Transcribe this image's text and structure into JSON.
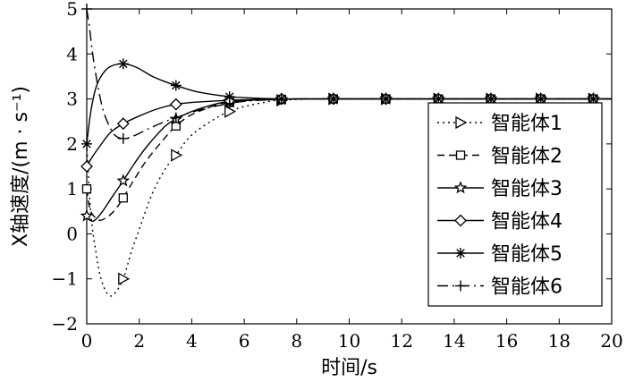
{
  "chart_data": {
    "type": "line",
    "xlabel": "时间/s",
    "ylabel": "X轴速度/(m · s⁻¹)",
    "xlim": [
      0,
      20
    ],
    "ylim": [
      -2,
      5
    ],
    "xticks": [
      0,
      2,
      4,
      6,
      8,
      10,
      12,
      14,
      16,
      18,
      20
    ],
    "yticks": [
      -2,
      -1,
      0,
      1,
      2,
      3,
      4,
      5
    ],
    "grid": false,
    "legend_position": "right",
    "series": [
      {
        "name": "智能体1",
        "line_style": "dotted",
        "marker": "triangle-right",
        "points": [
          [
            0,
            2.0
          ],
          [
            0.1,
            0.9
          ],
          [
            0.2,
            0.2
          ],
          [
            0.35,
            -0.4
          ],
          [
            0.5,
            -0.9
          ],
          [
            0.7,
            -1.25
          ],
          [
            0.9,
            -1.38
          ],
          [
            1.1,
            -1.3
          ],
          [
            1.39,
            -1.0
          ],
          [
            1.7,
            -0.4
          ],
          [
            2.0,
            0.1
          ],
          [
            2.5,
            0.9
          ],
          [
            3.0,
            1.45
          ],
          [
            3.4,
            1.75
          ],
          [
            4.0,
            2.2
          ],
          [
            5.0,
            2.6
          ],
          [
            5.44,
            2.72
          ],
          [
            6.0,
            2.83
          ],
          [
            7.0,
            2.95
          ],
          [
            7.42,
            2.97
          ],
          [
            8.0,
            2.99
          ],
          [
            9.0,
            3.0
          ],
          [
            9.4,
            3.0
          ],
          [
            10,
            3.0
          ],
          [
            11.4,
            3.0
          ],
          [
            13.4,
            3.0
          ],
          [
            15.4,
            3.0
          ],
          [
            17.3,
            3.0
          ],
          [
            19.3,
            3.0
          ],
          [
            20,
            3.0
          ]
        ],
        "marker_x": [
          1.39,
          3.4,
          5.44,
          7.42,
          9.4,
          11.4,
          13.4,
          15.4,
          17.3,
          19.3
        ]
      },
      {
        "name": "智能体2",
        "line_style": "dashed",
        "marker": "square",
        "points": [
          [
            0,
            1.0
          ],
          [
            0.1,
            0.6
          ],
          [
            0.2,
            0.45
          ],
          [
            0.35,
            0.35
          ],
          [
            0.5,
            0.3
          ],
          [
            0.8,
            0.38
          ],
          [
            1.1,
            0.55
          ],
          [
            1.39,
            0.8
          ],
          [
            1.8,
            1.2
          ],
          [
            2.3,
            1.65
          ],
          [
            3.0,
            2.15
          ],
          [
            3.4,
            2.4
          ],
          [
            4.0,
            2.65
          ],
          [
            5.0,
            2.88
          ],
          [
            5.44,
            2.92
          ],
          [
            6.0,
            2.96
          ],
          [
            7.42,
            2.99
          ],
          [
            8,
            3.0
          ],
          [
            9.4,
            3.0
          ],
          [
            20,
            3.0
          ]
        ],
        "marker_x": [
          0,
          1.39,
          3.4,
          5.44,
          7.42,
          9.4,
          11.4,
          13.4,
          15.4,
          17.3,
          19.3
        ]
      },
      {
        "name": "智能体3",
        "line_style": "solid",
        "marker": "star",
        "points": [
          [
            0,
            0.4
          ],
          [
            0.15,
            0.3
          ],
          [
            0.3,
            0.3
          ],
          [
            0.6,
            0.5
          ],
          [
            1.0,
            0.85
          ],
          [
            1.39,
            1.18
          ],
          [
            1.8,
            1.55
          ],
          [
            2.3,
            1.95
          ],
          [
            3.0,
            2.4
          ],
          [
            3.4,
            2.55
          ],
          [
            4.0,
            2.72
          ],
          [
            5.0,
            2.9
          ],
          [
            5.44,
            2.94
          ],
          [
            6.0,
            2.97
          ],
          [
            7.42,
            2.99
          ],
          [
            8,
            3.0
          ],
          [
            9.4,
            3.0
          ],
          [
            20,
            3.0
          ]
        ],
        "marker_x": [
          0,
          1.39,
          3.4,
          5.44,
          7.42,
          9.4,
          11.4,
          13.4,
          15.4,
          17.3,
          19.3
        ]
      },
      {
        "name": "智能体4",
        "line_style": "solid",
        "marker": "diamond",
        "points": [
          [
            0,
            1.5
          ],
          [
            0.2,
            1.7
          ],
          [
            0.5,
            1.95
          ],
          [
            0.9,
            2.25
          ],
          [
            1.39,
            2.45
          ],
          [
            2.0,
            2.62
          ],
          [
            2.7,
            2.78
          ],
          [
            3.4,
            2.88
          ],
          [
            4.2,
            2.93
          ],
          [
            5.44,
            2.97
          ],
          [
            6.5,
            2.99
          ],
          [
            7.42,
            3.0
          ],
          [
            9.4,
            3.0
          ],
          [
            20,
            3.0
          ]
        ],
        "marker_x": [
          0,
          1.39,
          3.4,
          5.44,
          7.42,
          9.4,
          11.4,
          13.4,
          15.4,
          17.3,
          19.3
        ]
      },
      {
        "name": "智能体5",
        "line_style": "solid",
        "marker": "asterisk",
        "points": [
          [
            0,
            2.0
          ],
          [
            0.15,
            2.7
          ],
          [
            0.35,
            3.25
          ],
          [
            0.6,
            3.55
          ],
          [
            0.9,
            3.72
          ],
          [
            1.39,
            3.78
          ],
          [
            1.9,
            3.7
          ],
          [
            2.5,
            3.5
          ],
          [
            3.0,
            3.38
          ],
          [
            3.4,
            3.3
          ],
          [
            4.2,
            3.16
          ],
          [
            5.44,
            3.05
          ],
          [
            6.3,
            3.02
          ],
          [
            7.42,
            3.0
          ],
          [
            9.4,
            3.0
          ],
          [
            20,
            3.0
          ]
        ],
        "marker_x": [
          0,
          1.39,
          3.4,
          5.44,
          7.42,
          9.4,
          11.4,
          13.4,
          15.4,
          17.3,
          19.3
        ]
      },
      {
        "name": "智能体6",
        "line_style": "dashdot",
        "marker": "plus",
        "points": [
          [
            0,
            5.0
          ],
          [
            0.1,
            4.6
          ],
          [
            0.25,
            3.9
          ],
          [
            0.45,
            3.2
          ],
          [
            0.65,
            2.7
          ],
          [
            0.9,
            2.35
          ],
          [
            1.1,
            2.18
          ],
          [
            1.39,
            2.12
          ],
          [
            1.8,
            2.18
          ],
          [
            2.4,
            2.35
          ],
          [
            3.0,
            2.5
          ],
          [
            3.4,
            2.58
          ],
          [
            4.2,
            2.74
          ],
          [
            5.44,
            2.9
          ],
          [
            6.3,
            2.96
          ],
          [
            7.42,
            2.99
          ],
          [
            8,
            3.0
          ],
          [
            9.4,
            3.0
          ],
          [
            20,
            3.0
          ]
        ],
        "marker_x": [
          0,
          1.39,
          3.4,
          5.44,
          7.42,
          9.4,
          11.4,
          13.4,
          15.4,
          17.3,
          19.3
        ]
      }
    ]
  }
}
